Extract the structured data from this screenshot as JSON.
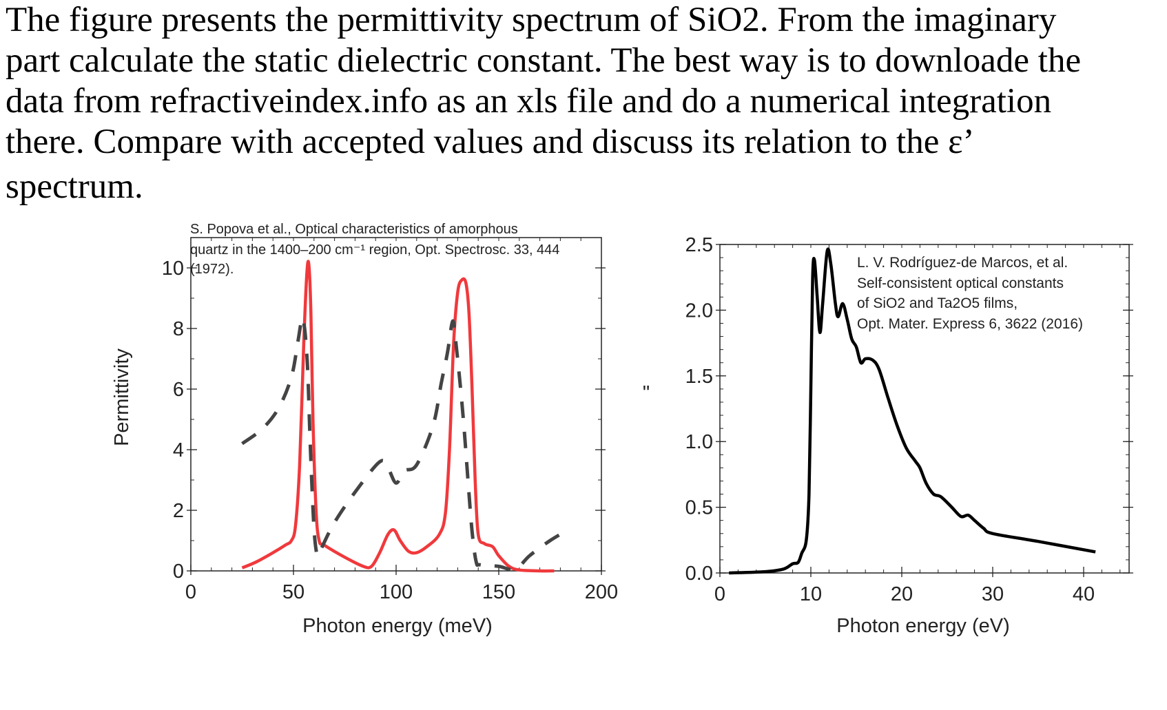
{
  "prompt": {
    "lines": [
      "The figure presents the permittivity spectrum of SiO2.  From the imaginary",
      "part calculate the static dielectric constant.  The best way is to downloade the",
      "data from refractiveindex.info as an xls file and do a numerical integration",
      " there.  Compare with accepted values and discuss its relation to the ε’",
      " spectrum."
    ]
  },
  "chart_data": [
    {
      "type": "line",
      "xlabel": "Photon energy (meV)",
      "ylabel": "Permittivity",
      "xlim": [
        0,
        200
      ],
      "ylim": [
        0,
        11
      ],
      "xticks": [
        "0",
        "50",
        "100",
        "150",
        "200"
      ],
      "yticks": [
        "0",
        "2",
        "4",
        "6",
        "8",
        "10"
      ],
      "annotation": [
        "S. Popova et al., Optical characteristics of amorphous",
        "quartz in the 1400–200 cm⁻¹ region, Opt. Spectrosc. 33, 444",
        "(1972)."
      ],
      "colors": {
        "imaginary": "#f0393c",
        "real": "#444444"
      },
      "series": [
        {
          "style": "solid",
          "color": "#f0393c",
          "x": [
            25,
            32,
            40,
            46,
            49,
            51,
            53,
            55,
            56.5,
            57.5,
            58.5,
            59.5,
            61,
            62.5,
            65,
            75,
            84,
            88,
            92,
            96,
            99,
            102,
            106,
            110,
            115,
            121,
            124,
            126,
            128,
            130,
            132,
            134,
            135.5,
            137,
            138.5,
            140,
            143,
            147,
            150,
            155,
            160,
            170,
            177
          ],
          "y": [
            0.1,
            0.3,
            0.6,
            0.85,
            1.0,
            1.5,
            3.5,
            7.5,
            9.8,
            10.1,
            8.5,
            5,
            2,
            1.0,
            0.85,
            0.45,
            0.15,
            0.15,
            0.6,
            1.2,
            1.35,
            1.0,
            0.65,
            0.6,
            0.8,
            1.2,
            1.9,
            4,
            7.5,
            9.2,
            9.6,
            9.5,
            8.5,
            6,
            3,
            1.2,
            0.9,
            0.8,
            0.5,
            0.15,
            0.03,
            0.0,
            0.0
          ]
        },
        {
          "style": "dashed",
          "color": "#444444",
          "x": [
            25,
            35,
            43,
            49,
            52,
            54,
            55,
            56,
            57,
            58,
            59,
            60,
            61,
            62,
            64,
            70,
            80,
            92,
            96,
            100,
            104,
            110,
            118,
            122,
            125,
            127,
            128,
            129,
            131,
            133,
            135,
            137,
            139,
            141,
            150,
            158,
            165,
            175,
            185
          ],
          "y": [
            4.2,
            4.7,
            5.4,
            6.4,
            7.5,
            8.3,
            8.2,
            7.6,
            6.5,
            4.5,
            2.8,
            1.4,
            0.7,
            0.5,
            0.8,
            1.6,
            2.6,
            3.6,
            3.4,
            2.9,
            3.3,
            3.5,
            4.8,
            6.2,
            7.2,
            8.1,
            8.2,
            7.6,
            6.3,
            4.8,
            3,
            1.3,
            0.3,
            0.2,
            0.15,
            0.05,
            0.5,
            1.0,
            1.4
          ]
        }
      ]
    },
    {
      "type": "line",
      "xlabel": "Photon energy (eV)",
      "ylabel": "\"",
      "xlim": [
        0,
        45
      ],
      "ylim": [
        0,
        2.5
      ],
      "xticks": [
        "0",
        "10",
        "20",
        "30",
        "40"
      ],
      "yticks": [
        "0.0",
        "0.5",
        "1.0",
        "1.5",
        "2.0",
        "2.5"
      ],
      "annotation": [
        "L. V. Rodríguez-de Marcos, et al.",
        "Self-consistent optical constants",
        "of SiO2 and Ta2O5 films,",
        "Opt. Mater. Express 6, 3622 (2016)"
      ],
      "series": [
        {
          "style": "solid",
          "color": "#000000",
          "x": [
            1,
            5,
            7,
            8,
            8.6,
            9,
            9.5,
            9.8,
            10,
            10.2,
            10.4,
            10.7,
            11,
            11.3,
            11.8,
            12.2,
            12.7,
            13,
            13.5,
            14,
            14.5,
            15,
            15.5,
            16,
            16.8,
            17.5,
            18.5,
            19.5,
            20.5,
            21.5,
            22,
            22.7,
            23.5,
            24.3,
            25.5,
            26.5,
            27.3,
            28,
            29,
            30,
            35,
            41.3
          ],
          "y": [
            0,
            0.01,
            0.03,
            0.07,
            0.08,
            0.15,
            0.25,
            0.6,
            1.4,
            2.25,
            2.38,
            2.1,
            1.83,
            2.05,
            2.45,
            2.35,
            2.05,
            1.95,
            2.05,
            1.93,
            1.78,
            1.72,
            1.6,
            1.63,
            1.62,
            1.55,
            1.33,
            1.12,
            0.95,
            0.85,
            0.8,
            0.68,
            0.6,
            0.58,
            0.5,
            0.43,
            0.44,
            0.4,
            0.34,
            0.3,
            0.24,
            0.16
          ]
        }
      ]
    }
  ]
}
